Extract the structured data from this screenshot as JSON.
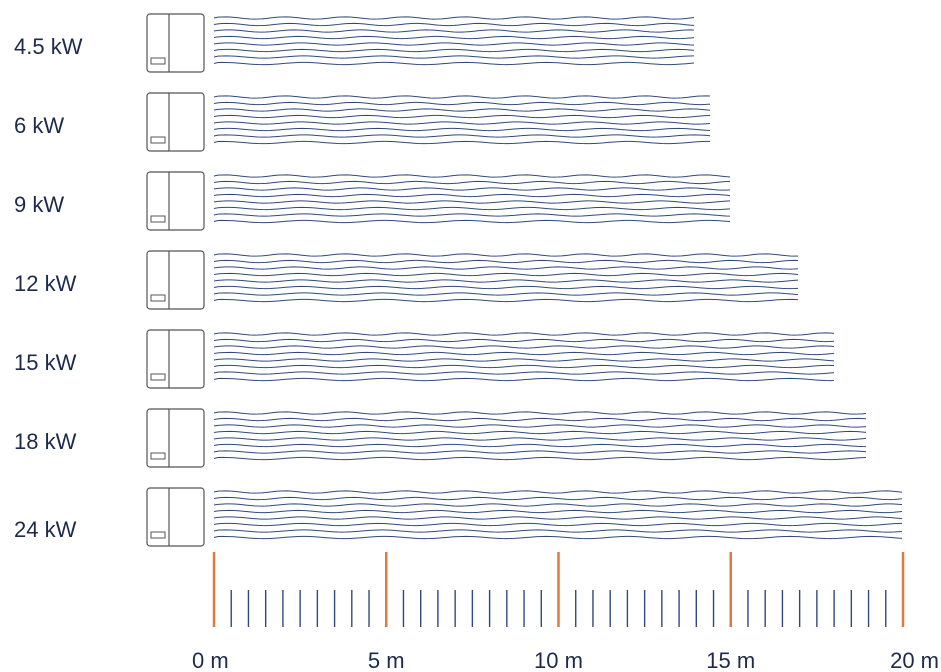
{
  "colors": {
    "text": "#1c2b4b",
    "cable": "#2f4a7a",
    "unit_outline": "#555555",
    "major_tick": "#e07a3f",
    "minor_tick": "#2f4a7a"
  },
  "chart_data": {
    "type": "bar",
    "orientation": "horizontal",
    "categories": [
      "4.5 kW",
      "6 kW",
      "9 kW",
      "12 kW",
      "15 kW",
      "18 kW",
      "24 kW"
    ],
    "values": [
      14,
      14.5,
      15,
      17,
      18,
      19,
      20
    ],
    "unit": "m",
    "xlim": [
      0,
      20
    ],
    "x_ticks": [
      0,
      5,
      10,
      15,
      20
    ],
    "x_tick_labels": [
      "0 m",
      "5 m",
      "10 m",
      "15 m",
      "20 m"
    ],
    "minor_ticks_per_major": 9,
    "title": "",
    "xlabel": "",
    "ylabel": "",
    "grid": false,
    "legend": "none"
  }
}
